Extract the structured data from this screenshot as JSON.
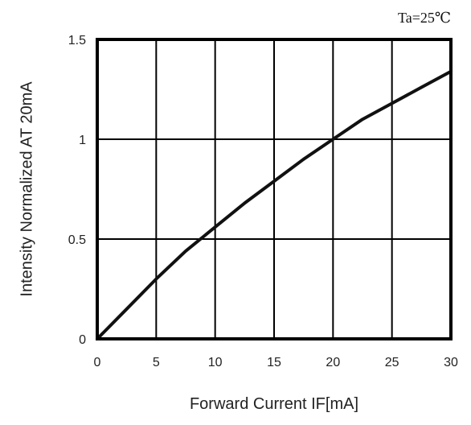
{
  "chart_data": {
    "type": "line",
    "title": "",
    "annotation": "Ta=25℃",
    "xlabel": "Forward Current IF[mA]",
    "ylabel": "Intensity Normalized AT 20mA",
    "xlim": [
      0,
      30
    ],
    "ylim": [
      0,
      1.5
    ],
    "x_ticks": [
      0,
      5,
      10,
      15,
      20,
      25,
      30
    ],
    "y_ticks": [
      0,
      0.5,
      1,
      1.5
    ],
    "x_tick_labels": [
      "0",
      "5",
      "10",
      "15",
      "20",
      "25",
      "30"
    ],
    "y_tick_labels": [
      "0",
      "0.5",
      "1",
      "1.5"
    ],
    "grid": true,
    "legend": "none",
    "series": [
      {
        "color": "#111111",
        "x": [
          0,
          2.5,
          5,
          7.5,
          10,
          12.5,
          15,
          17.5,
          20,
          22.5,
          25,
          27.5,
          30
        ],
        "y": [
          0,
          0.15,
          0.3,
          0.44,
          0.56,
          0.68,
          0.79,
          0.9,
          1.0,
          1.1,
          1.18,
          1.26,
          1.34
        ]
      }
    ]
  }
}
